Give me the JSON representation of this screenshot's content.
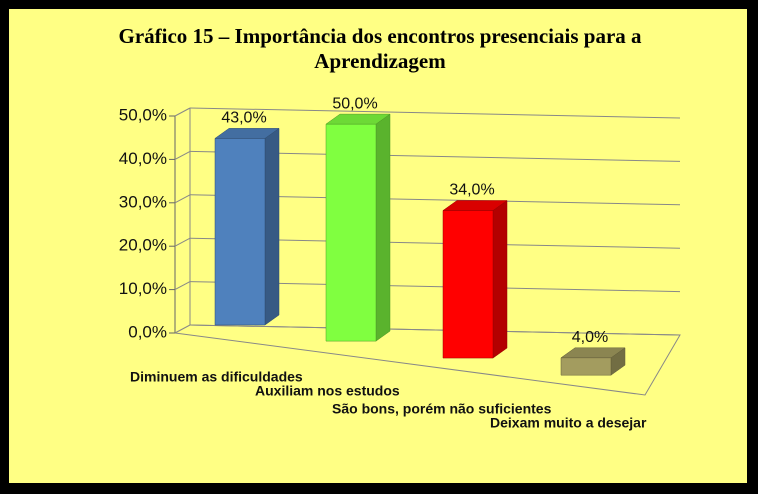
{
  "chart_data": {
    "type": "bar3d",
    "title": "Gráfico 15 – Importância dos encontros presenciais para a Aprendizagem",
    "categories": [
      "Diminuem as dificuldades",
      "Auxiliam nos estudos",
      "São bons, porém não suficientes",
      "Deixam muito a desejar"
    ],
    "values": [
      43,
      50,
      34,
      4
    ],
    "value_labels": [
      "43,0%",
      "50,0%",
      "34,0%",
      "4,0%"
    ],
    "colors": [
      "#4f81bd",
      "#80ff40",
      "#ff0000",
      "#a39c5f"
    ],
    "ylim": [
      0,
      50
    ],
    "yticks": [
      {
        "value": 0,
        "label": "0,0%"
      },
      {
        "value": 10,
        "label": "10,0%"
      },
      {
        "value": 20,
        "label": "20,0%"
      },
      {
        "value": 30,
        "label": "30,0%"
      },
      {
        "value": 40,
        "label": "40,0%"
      },
      {
        "value": 50,
        "label": "50,0%"
      }
    ],
    "grid": true
  }
}
